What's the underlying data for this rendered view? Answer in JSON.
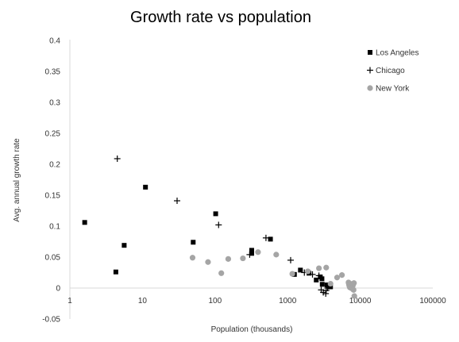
{
  "chart_data": {
    "type": "scatter",
    "title": "Growth rate vs population",
    "xlabel": "Population (thousands)",
    "ylabel": "Avg. annual growth rate",
    "xscale": "log",
    "xlim": [
      1,
      100000
    ],
    "ylim": [
      -0.05,
      0.4
    ],
    "x_ticks": [
      1,
      10,
      100,
      1000,
      10000,
      100000
    ],
    "x_tick_labels": [
      "1",
      "10",
      "100",
      "1000",
      "10000",
      "100000"
    ],
    "y_ticks": [
      -0.05,
      0,
      0.05,
      0.1,
      0.15,
      0.2,
      0.25,
      0.3,
      0.35,
      0.4
    ],
    "y_tick_labels": [
      "-0.05",
      "0",
      "0.05",
      "0.1",
      "0.15",
      "0.2",
      "0.25",
      "0.3",
      "0.35",
      "0.4"
    ],
    "grid": false,
    "legend_position": "top-right",
    "series": [
      {
        "name": "Los Angeles",
        "marker": "square",
        "color": "#000000",
        "points": [
          [
            1.6,
            0.106
          ],
          [
            4.3,
            0.026
          ],
          [
            5.6,
            0.069
          ],
          [
            11,
            0.163
          ],
          [
            50,
            0.074
          ],
          [
            102,
            0.12
          ],
          [
            320,
            0.061
          ],
          [
            320,
            0.056
          ],
          [
            580,
            0.079
          ],
          [
            1240,
            0.022
          ],
          [
            1500,
            0.029
          ],
          [
            1970,
            0.024
          ],
          [
            2480,
            0.013
          ],
          [
            2820,
            0.018
          ],
          [
            2970,
            0.015
          ],
          [
            3000,
            0.006
          ],
          [
            3490,
            0.005
          ],
          [
            3690,
            0.003
          ],
          [
            3800,
            0.002
          ],
          [
            3900,
            0.002
          ]
        ]
      },
      {
        "name": "Chicago",
        "marker": "plus",
        "color": "#000000",
        "points": [
          [
            4.5,
            0.209
          ],
          [
            30,
            0.141
          ],
          [
            112,
            0.102
          ],
          [
            300,
            0.054
          ],
          [
            503,
            0.081
          ],
          [
            1100,
            0.045
          ],
          [
            1700,
            0.025
          ],
          [
            2200,
            0.022
          ],
          [
            2700,
            0.02
          ],
          [
            2900,
            -0.003
          ],
          [
            3100,
            -0.007
          ],
          [
            3350,
            -0.009
          ],
          [
            3400,
            -0.004
          ],
          [
            3550,
            0.0
          ],
          [
            3620,
            0.003
          ]
        ]
      },
      {
        "name": "New York",
        "marker": "circle",
        "color": "#a5a5a5",
        "points": [
          [
            49,
            0.049
          ],
          [
            80,
            0.042
          ],
          [
            122,
            0.024
          ],
          [
            152,
            0.047
          ],
          [
            242,
            0.048
          ],
          [
            391,
            0.058
          ],
          [
            696,
            0.054
          ],
          [
            1160,
            0.023
          ],
          [
            1900,
            0.027
          ],
          [
            2700,
            0.032
          ],
          [
            3400,
            0.033
          ],
          [
            3900,
            0.007
          ],
          [
            4800,
            0.017
          ],
          [
            5600,
            0.021
          ],
          [
            6900,
            0.009
          ],
          [
            7000,
            0.006
          ],
          [
            7100,
            0.003
          ],
          [
            7200,
            0.001
          ],
          [
            7300,
            0.007
          ],
          [
            7500,
            0.0
          ],
          [
            7700,
            0.005
          ],
          [
            7800,
            -0.001
          ],
          [
            7900,
            0.004
          ],
          [
            8000,
            0.006
          ],
          [
            8100,
            -0.003
          ],
          [
            8200,
            0.008
          ],
          [
            8300,
            -0.013
          ]
        ]
      }
    ]
  }
}
